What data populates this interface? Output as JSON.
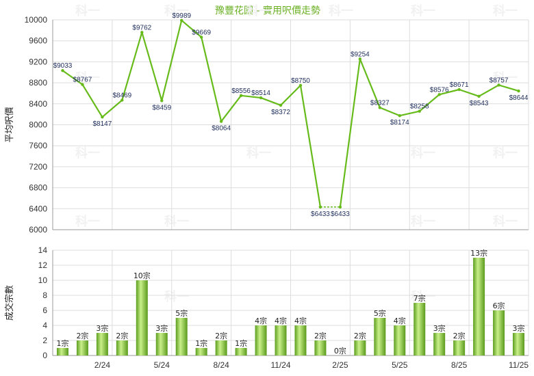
{
  "title": "豫豐花園 - 實用呎價走勢",
  "watermark": "科一",
  "colors": {
    "line": "#66bb1a",
    "bar_light": "#c8ee88",
    "bar_dark": "#5fa51e",
    "grid": "#dddddd"
  },
  "chart_data": [
    {
      "type": "line",
      "ylabel": "平均呎價",
      "ylim": [
        6000,
        10000
      ],
      "yticks": [
        6000,
        6400,
        6800,
        7200,
        7600,
        8000,
        8400,
        8800,
        9200,
        9600,
        10000
      ],
      "values": [
        9033,
        8767,
        8147,
        8469,
        9762,
        8459,
        9989,
        9669,
        8064,
        8556,
        8514,
        8372,
        8750,
        6433,
        6433,
        9254,
        8327,
        8174,
        8258,
        8576,
        8671,
        8543,
        8757,
        8644
      ],
      "labels": [
        "$9033",
        "$8767",
        "$8147",
        "$8469",
        "$9762",
        "$8459",
        "$9989",
        "$9669",
        "$8064",
        "$8556",
        "$8514",
        "$8372",
        "$8750",
        "$6433",
        "$6433",
        "$9254",
        "$8327",
        "$8174",
        "$8258",
        "$8576",
        "$8671",
        "$8543",
        "$8757",
        "$8644"
      ],
      "dashed_segment": [
        13,
        14
      ]
    },
    {
      "type": "bar",
      "ylabel": "成交宗數",
      "ylim": [
        0,
        14
      ],
      "yticks": [
        0,
        2,
        4,
        6,
        8,
        10,
        12,
        14
      ],
      "values": [
        1,
        2,
        3,
        2,
        10,
        3,
        5,
        1,
        2,
        1,
        4,
        4,
        4,
        2,
        0,
        2,
        5,
        4,
        7,
        3,
        2,
        13,
        6,
        3
      ],
      "labels": [
        "1宗",
        "2宗",
        "3宗",
        "2宗",
        "10宗",
        "3宗",
        "5宗",
        "1宗",
        "2宗",
        "1宗",
        "4宗",
        "4宗",
        "4宗",
        "2宗",
        "0宗",
        "2宗",
        "5宗",
        "4宗",
        "7宗",
        "3宗",
        "2宗",
        "13宗",
        "6宗",
        "3宗"
      ],
      "xtick_labels": [
        "2/24",
        "5/24",
        "8/24",
        "11/24",
        "2/25",
        "5/25",
        "8/25",
        "11/25"
      ],
      "xtick_index": [
        2,
        5,
        8,
        11,
        14,
        17,
        20,
        23
      ]
    }
  ]
}
